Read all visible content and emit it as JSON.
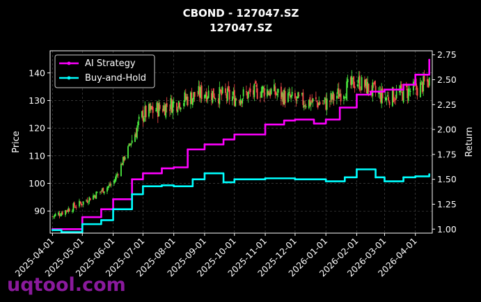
{
  "watermark": "uqtool.com",
  "chart_data": {
    "type": "line",
    "title": "CBOND - 127047.SZ",
    "subtitle": "127047.SZ",
    "ylabel_left": "Price",
    "ylabel_right": "Return",
    "xlabel": "",
    "ylim_left": [
      82,
      148
    ],
    "ylim_right": [
      0.96,
      2.79
    ],
    "x_ticks": [
      "2025-04-01",
      "2025-05-01",
      "2025-06-01",
      "2025-07-01",
      "2025-08-01",
      "2025-09-01",
      "2025-10-01",
      "2025-11-01",
      "2025-12-01",
      "2026-01-01",
      "2026-02-01",
      "2026-03-01",
      "2026-04-01"
    ],
    "y_ticks_left": [
      90,
      100,
      110,
      120,
      130,
      140
    ],
    "y_ticks_right": [
      1.0,
      1.25,
      1.5,
      1.75,
      2.0,
      2.25,
      2.5,
      2.75
    ],
    "grid": true,
    "legend_position": "top-left",
    "candle_colors": {
      "up": "#4cf040",
      "down": "#ff4c4c"
    },
    "price_candles_monthly_close": {
      "x": [
        "2025-04-01",
        "2025-05-01",
        "2025-06-01",
        "2025-07-01",
        "2025-08-01",
        "2025-09-01",
        "2025-10-01",
        "2025-11-01",
        "2025-12-01",
        "2026-01-01",
        "2026-02-01",
        "2026-03-01",
        "2026-04-01",
        "2026-04-15"
      ],
      "values": [
        88,
        93,
        100,
        125,
        129,
        133,
        131,
        134,
        130,
        129,
        137,
        131,
        134,
        137
      ]
    },
    "series": [
      {
        "name": "AI Strategy",
        "color": "#ff00ff",
        "axis": "right",
        "x": [
          "2025-04-01",
          "2025-05-01",
          "2025-05-20",
          "2025-06-01",
          "2025-06-20",
          "2025-07-01",
          "2025-07-20",
          "2025-08-01",
          "2025-08-15",
          "2025-09-01",
          "2025-09-20",
          "2025-10-01",
          "2025-11-01",
          "2025-11-20",
          "2025-12-01",
          "2025-12-20",
          "2026-01-01",
          "2026-01-15",
          "2026-02-01",
          "2026-02-15",
          "2026-03-01",
          "2026-03-20",
          "2026-04-01",
          "2026-04-15"
        ],
        "values": [
          1.0,
          1.12,
          1.2,
          1.3,
          1.5,
          1.56,
          1.61,
          1.62,
          1.8,
          1.85,
          1.9,
          1.95,
          2.05,
          2.09,
          2.1,
          2.06,
          2.1,
          2.22,
          2.35,
          2.38,
          2.4,
          2.45,
          2.55,
          2.7
        ]
      },
      {
        "name": "Buy-and-Hold",
        "color": "#00ffff",
        "axis": "right",
        "x": [
          "2025-04-01",
          "2025-04-10",
          "2025-05-01",
          "2025-05-20",
          "2025-06-01",
          "2025-06-20",
          "2025-07-01",
          "2025-07-20",
          "2025-08-01",
          "2025-08-20",
          "2025-09-01",
          "2025-09-20",
          "2025-10-01",
          "2025-11-01",
          "2025-12-01",
          "2026-01-01",
          "2026-01-20",
          "2026-02-01",
          "2026-02-20",
          "2026-03-01",
          "2026-03-20",
          "2026-04-01",
          "2026-04-15"
        ],
        "values": [
          0.99,
          0.97,
          1.05,
          1.09,
          1.2,
          1.35,
          1.43,
          1.44,
          1.43,
          1.5,
          1.56,
          1.47,
          1.5,
          1.51,
          1.5,
          1.48,
          1.52,
          1.6,
          1.52,
          1.48,
          1.52,
          1.53,
          1.55
        ]
      }
    ]
  }
}
